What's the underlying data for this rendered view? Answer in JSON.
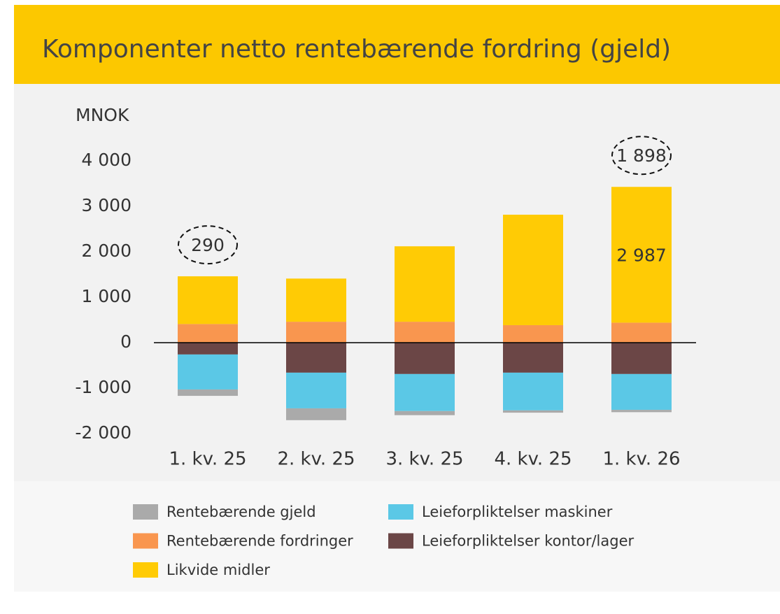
{
  "chart_data": {
    "type": "stacked_bar",
    "title": "Komponenter netto rentebærende fordring (gjeld)",
    "y_label": "MNOK",
    "categories": [
      "1. kv. 25",
      "2. kv. 25",
      "3. kv. 25",
      "4. kv. 25",
      "1. kv. 26"
    ],
    "series": [
      {
        "name": "Rentebærende fordringer",
        "color": "#f9964f",
        "values": [
          410,
          460,
          460,
          385,
          440
        ]
      },
      {
        "name": "Likvide midler",
        "color": "#ffcb05",
        "values": [
          1050,
          950,
          1660,
          2430,
          2987
        ],
        "value_labels": [
          null,
          null,
          null,
          null,
          "2 987"
        ]
      },
      {
        "name": "Leieforpliktelser kontor/lager",
        "color": "#6b4646",
        "values": [
          -260,
          -660,
          -690,
          -660,
          -690
        ]
      },
      {
        "name": "Leieforpliktelser maskiner",
        "color": "#5bc8e6",
        "values": [
          -770,
          -785,
          -815,
          -830,
          -789
        ]
      },
      {
        "name": "Rentebærende gjeld",
        "color": "#aaaaaa",
        "values": [
          -140,
          -260,
          -90,
          -50,
          -50
        ]
      }
    ],
    "annotations": [
      "290",
      null,
      null,
      null,
      "1 898"
    ],
    "ylim": [
      -2000,
      4000
    ],
    "yticks": [
      {
        "value": -2000,
        "label": "-2 000"
      },
      {
        "value": -1000,
        "label": "-1 000"
      },
      0,
      {
        "value": 1000,
        "label": "1 000"
      },
      {
        "value": 2000,
        "label": "2 000"
      },
      {
        "value": 3000,
        "label": "3 000"
      },
      {
        "value": 4000,
        "label": "4 000"
      }
    ]
  }
}
